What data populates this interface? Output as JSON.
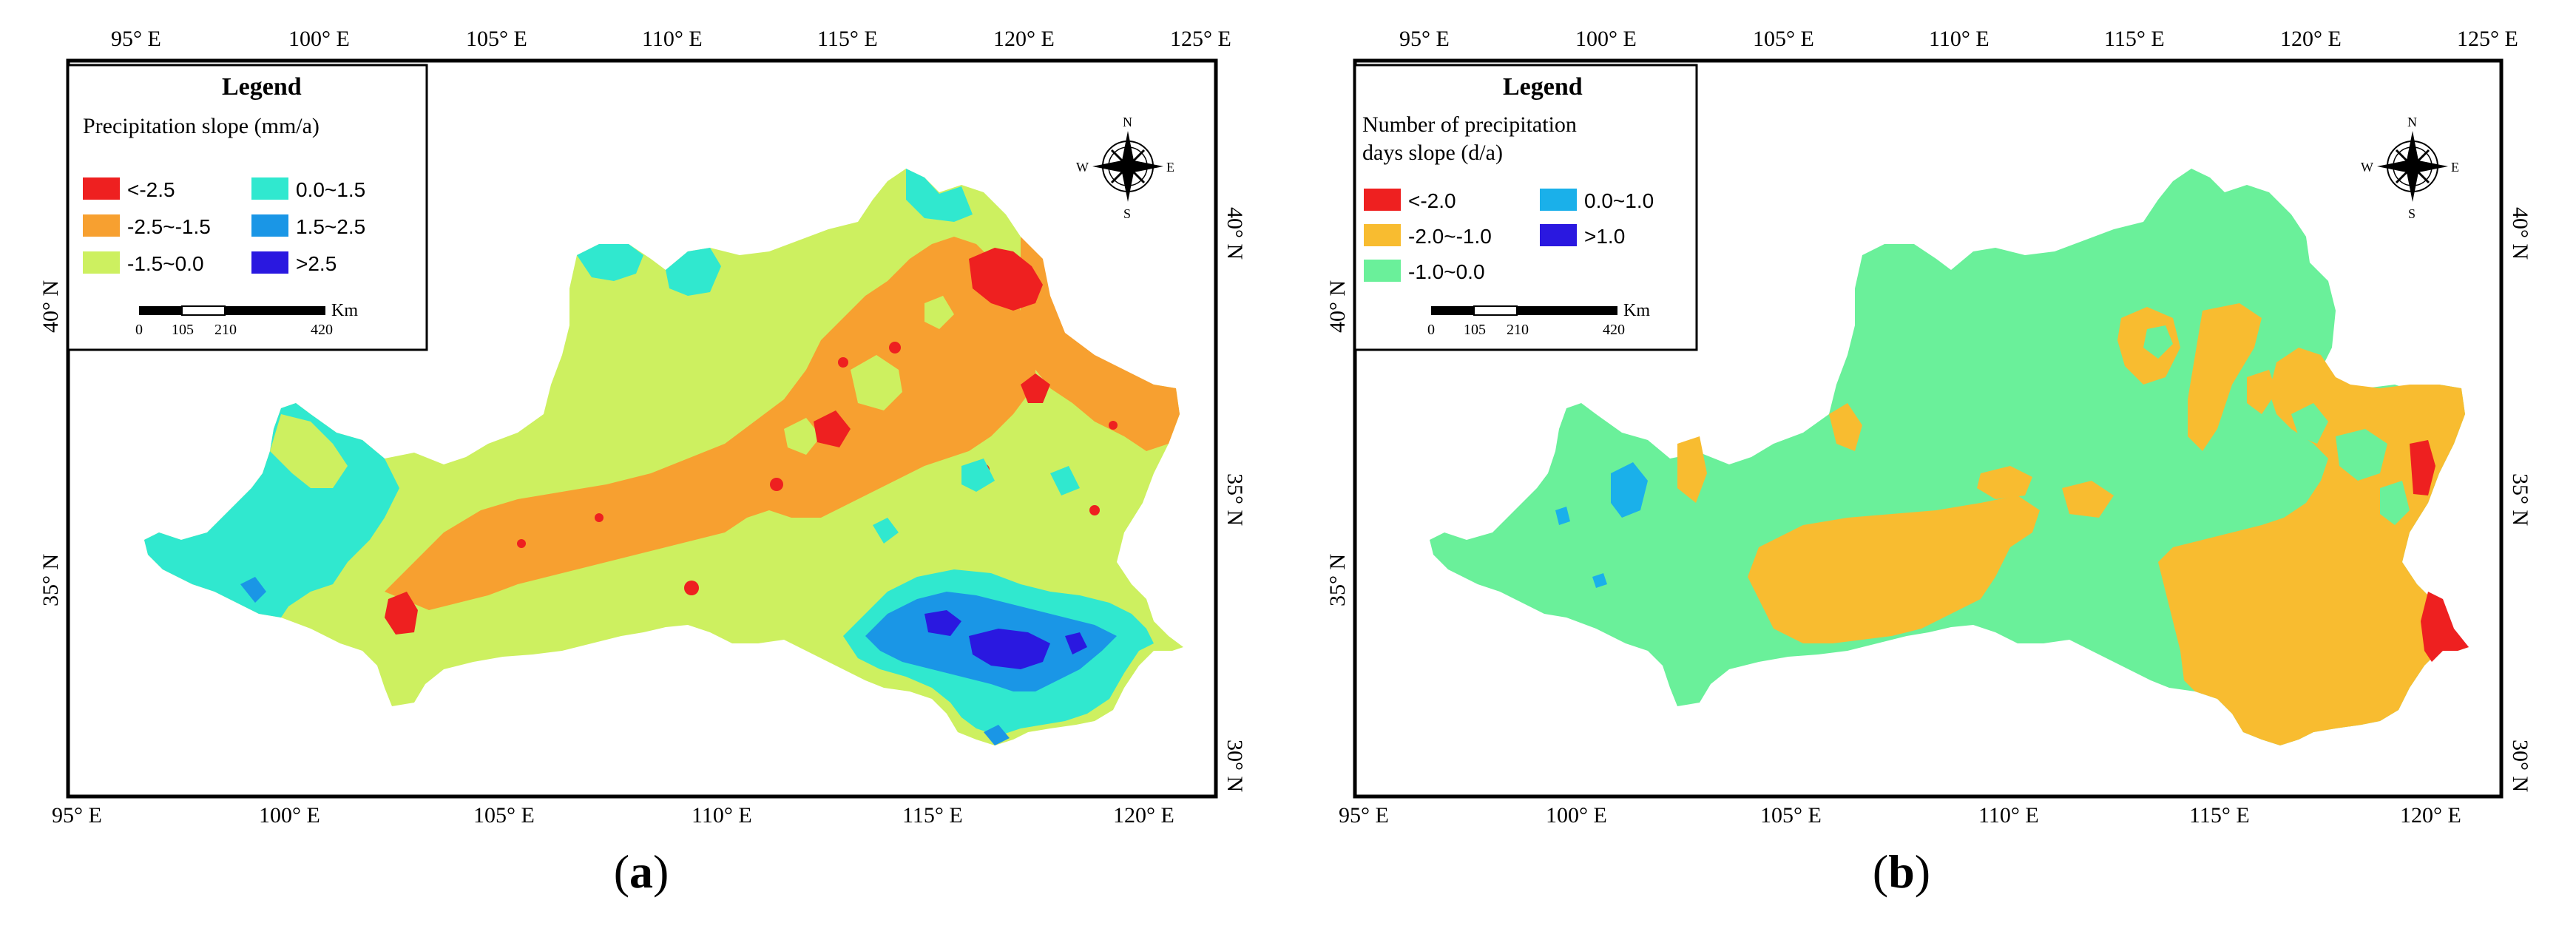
{
  "panels": [
    {
      "caption_letter": "a",
      "top_lon_labels": [
        "95° E",
        "100° E",
        "105° E",
        "110° E",
        "115° E",
        "120° E",
        "125° E"
      ],
      "bottom_lon_labels": [
        "95° E",
        "100° E",
        "105° E",
        "110° E",
        "115° E",
        "120° E"
      ],
      "left_lat_labels": [
        "35° N",
        "40° N"
      ],
      "right_lat_labels": [
        "30° N",
        "35° N",
        "40° N"
      ],
      "legend": {
        "title": "Legend",
        "subtitle_lines": [
          "Precipitation slope (mm/a)"
        ],
        "items": [
          {
            "label": "<-2.5",
            "color": "#ee2020"
          },
          {
            "label": "-2.5~-1.5",
            "color": "#f7a030"
          },
          {
            "label": "-1.5~0.0",
            "color": "#cdf060"
          },
          {
            "label": "0.0~1.5",
            "color": "#30e8cf"
          },
          {
            "label": "1.5~2.5",
            "color": "#1a96e6"
          },
          {
            "label": ">2.5",
            "color": "#2a18e0"
          }
        ],
        "scale_unit": "Km",
        "scale_ticks": [
          "0",
          "105",
          "210",
          "420"
        ]
      },
      "compass": {
        "n": "N",
        "s": "S",
        "e": "E",
        "w": "W"
      }
    },
    {
      "caption_letter": "b",
      "top_lon_labels": [
        "95° E",
        "100° E",
        "105° E",
        "110° E",
        "115° E",
        "120° E",
        "125° E"
      ],
      "bottom_lon_labels": [
        "95° E",
        "100° E",
        "105° E",
        "110° E",
        "115° E",
        "120° E"
      ],
      "left_lat_labels": [
        "35° N",
        "40° N"
      ],
      "right_lat_labels": [
        "30° N",
        "35° N",
        "40° N"
      ],
      "legend": {
        "title": "Legend",
        "subtitle_lines": [
          "Number of precipitation",
          "days slope (d/a)"
        ],
        "items": [
          {
            "label": "<-2.0",
            "color": "#ee2020"
          },
          {
            "label": "-2.0~-1.0",
            "color": "#f8bc30"
          },
          {
            "label": "-1.0~0.0",
            "color": "#6af09a"
          },
          {
            "label": "0.0~1.0",
            "color": "#1ab0ea"
          },
          {
            "label": ">1.0",
            "color": "#2a18e0"
          }
        ],
        "scale_unit": "Km",
        "scale_ticks": [
          "0",
          "105",
          "210",
          "420"
        ]
      },
      "compass": {
        "n": "N",
        "s": "S",
        "e": "E",
        "w": "W"
      }
    }
  ]
}
